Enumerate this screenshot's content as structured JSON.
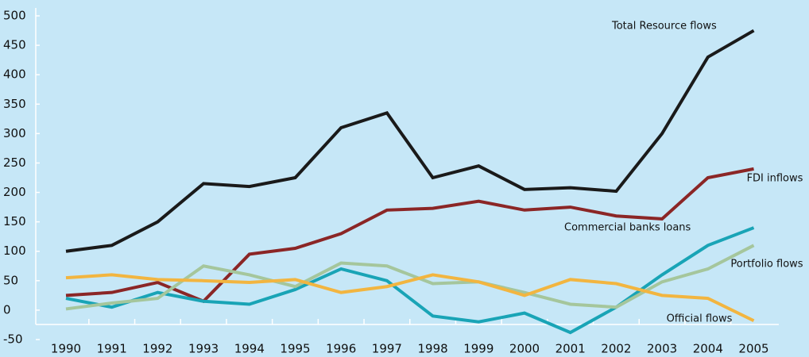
{
  "chart_data": {
    "type": "line",
    "categories": [
      "1990",
      "1991",
      "1992",
      "1993",
      "1994",
      "1995",
      "1996",
      "1997",
      "1998",
      "1999",
      "2000",
      "2001",
      "2002",
      "2003",
      "2004",
      "2005"
    ],
    "series": [
      {
        "name": "Total Resource flows",
        "color": "#1a1a1a",
        "values": [
          100,
          110,
          150,
          215,
          210,
          225,
          310,
          335,
          225,
          245,
          205,
          208,
          202,
          300,
          430,
          475
        ]
      },
      {
        "name": "FDI inflows",
        "color": "#8b2626",
        "values": [
          25,
          30,
          47,
          15,
          95,
          105,
          130,
          170,
          173,
          185,
          170,
          175,
          160,
          155,
          225,
          240
        ]
      },
      {
        "name": "Commercial banks loans",
        "color": "#19a4b6",
        "values": [
          20,
          5,
          30,
          15,
          10,
          35,
          70,
          50,
          -10,
          -20,
          -5,
          -38,
          5,
          60,
          110,
          140
        ]
      },
      {
        "name": "Portfolio flows",
        "color": "#a5c69c",
        "values": [
          2,
          12,
          20,
          75,
          60,
          40,
          80,
          75,
          45,
          48,
          30,
          10,
          5,
          48,
          70,
          110
        ]
      },
      {
        "name": "Official flows",
        "color": "#f2b540",
        "values": [
          55,
          60,
          52,
          50,
          47,
          52,
          30,
          40,
          60,
          48,
          25,
          52,
          45,
          25,
          20,
          -18
        ]
      }
    ],
    "ylim": [
      -50,
      500
    ],
    "yticks": [
      -50,
      0,
      50,
      100,
      150,
      200,
      250,
      300,
      350,
      400,
      450,
      500
    ]
  }
}
